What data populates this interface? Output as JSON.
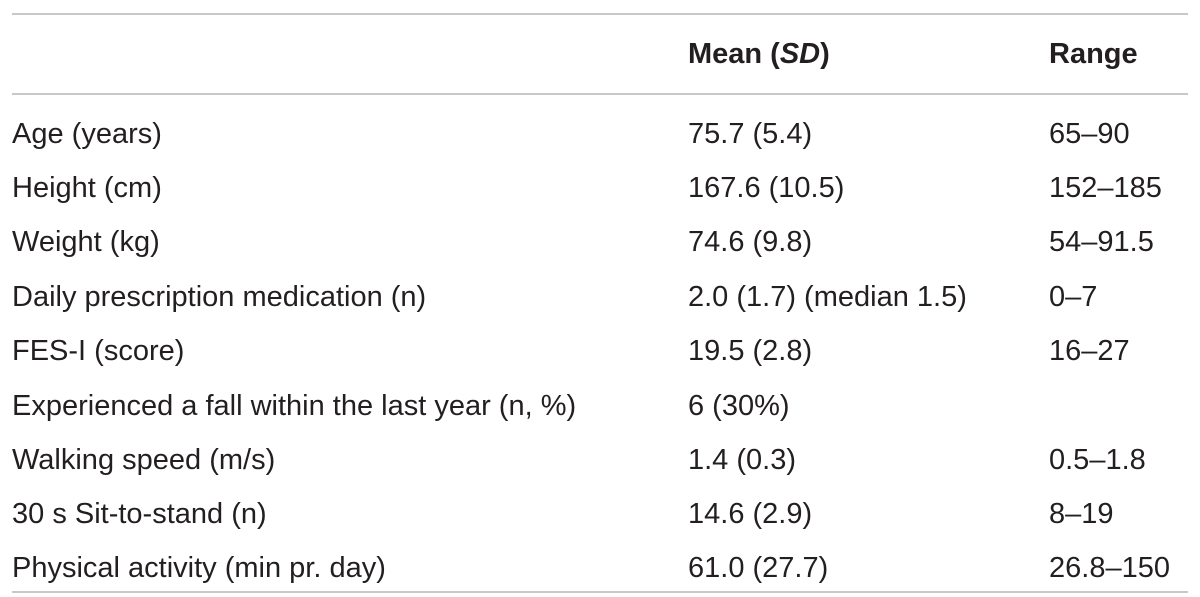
{
  "table": {
    "header": {
      "mean_text": "Mean (",
      "mean_sd": "SD",
      "mean_close": ")",
      "range": "Range"
    },
    "rows": [
      {
        "label": "Age (years)",
        "mean": "75.7 (5.4)",
        "range": "65–90"
      },
      {
        "label": "Height (cm)",
        "mean": "167.6 (10.5)",
        "range": "152–185"
      },
      {
        "label": "Weight (kg)",
        "mean": "74.6 (9.8)",
        "range": "54–91.5"
      },
      {
        "label": "Daily prescription medication (n)",
        "mean": "2.0 (1.7) (median 1.5)",
        "range": "0–7"
      },
      {
        "label": "FES-I (score)",
        "mean": "19.5 (2.8)",
        "range": "16–27"
      },
      {
        "label": "Experienced a fall within the last year (n, %)",
        "mean": "6 (30%)",
        "range": ""
      },
      {
        "label": "Walking speed (m/s)",
        "mean": "1.4 (0.3)",
        "range": "0.5–1.8"
      },
      {
        "label": "30 s Sit-to-stand (n)",
        "mean": "14.6 (2.9)",
        "range": "8–19"
      },
      {
        "label": "Physical activity (min pr. day)",
        "mean": "61.0 (27.7)",
        "range": "26.8–150"
      }
    ]
  }
}
